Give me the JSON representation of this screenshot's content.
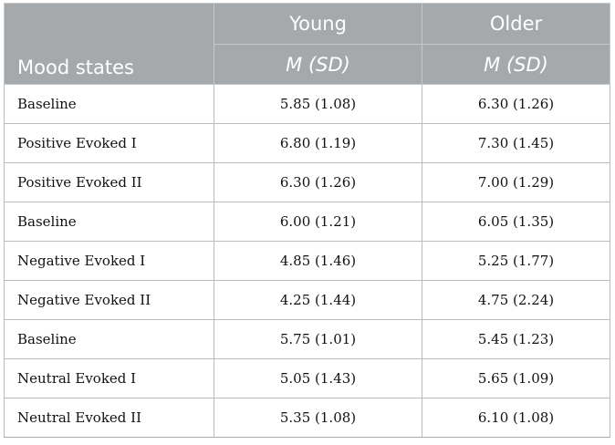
{
  "table": {
    "row_header_label": "Mood states",
    "groups": [
      "Young",
      "Older"
    ],
    "sub_header": "M (SD)",
    "rows": [
      {
        "state": "Baseline",
        "young": "5.85 (1.08)",
        "older": "6.30 (1.26)"
      },
      {
        "state": "Positive Evoked I",
        "young": "6.80 (1.19)",
        "older": "7.30 (1.45)"
      },
      {
        "state": "Positive Evoked II",
        "young": "6.30 (1.26)",
        "older": "7.00 (1.29)"
      },
      {
        "state": "Baseline",
        "young": "6.00 (1.21)",
        "older": "6.05 (1.35)"
      },
      {
        "state": "Negative Evoked I",
        "young": "4.85 (1.46)",
        "older": "5.25 (1.77)"
      },
      {
        "state": "Negative Evoked II",
        "young": "4.25 (1.44)",
        "older": "4.75 (2.24)"
      },
      {
        "state": "Baseline",
        "young": "5.75 (1.01)",
        "older": "5.45 (1.23)"
      },
      {
        "state": "Neutral Evoked I",
        "young": "5.05 (1.43)",
        "older": "5.65 (1.09)"
      },
      {
        "state": "Neutral Evoked II",
        "young": "5.35 (1.08)",
        "older": "6.10 (1.08)"
      }
    ]
  }
}
